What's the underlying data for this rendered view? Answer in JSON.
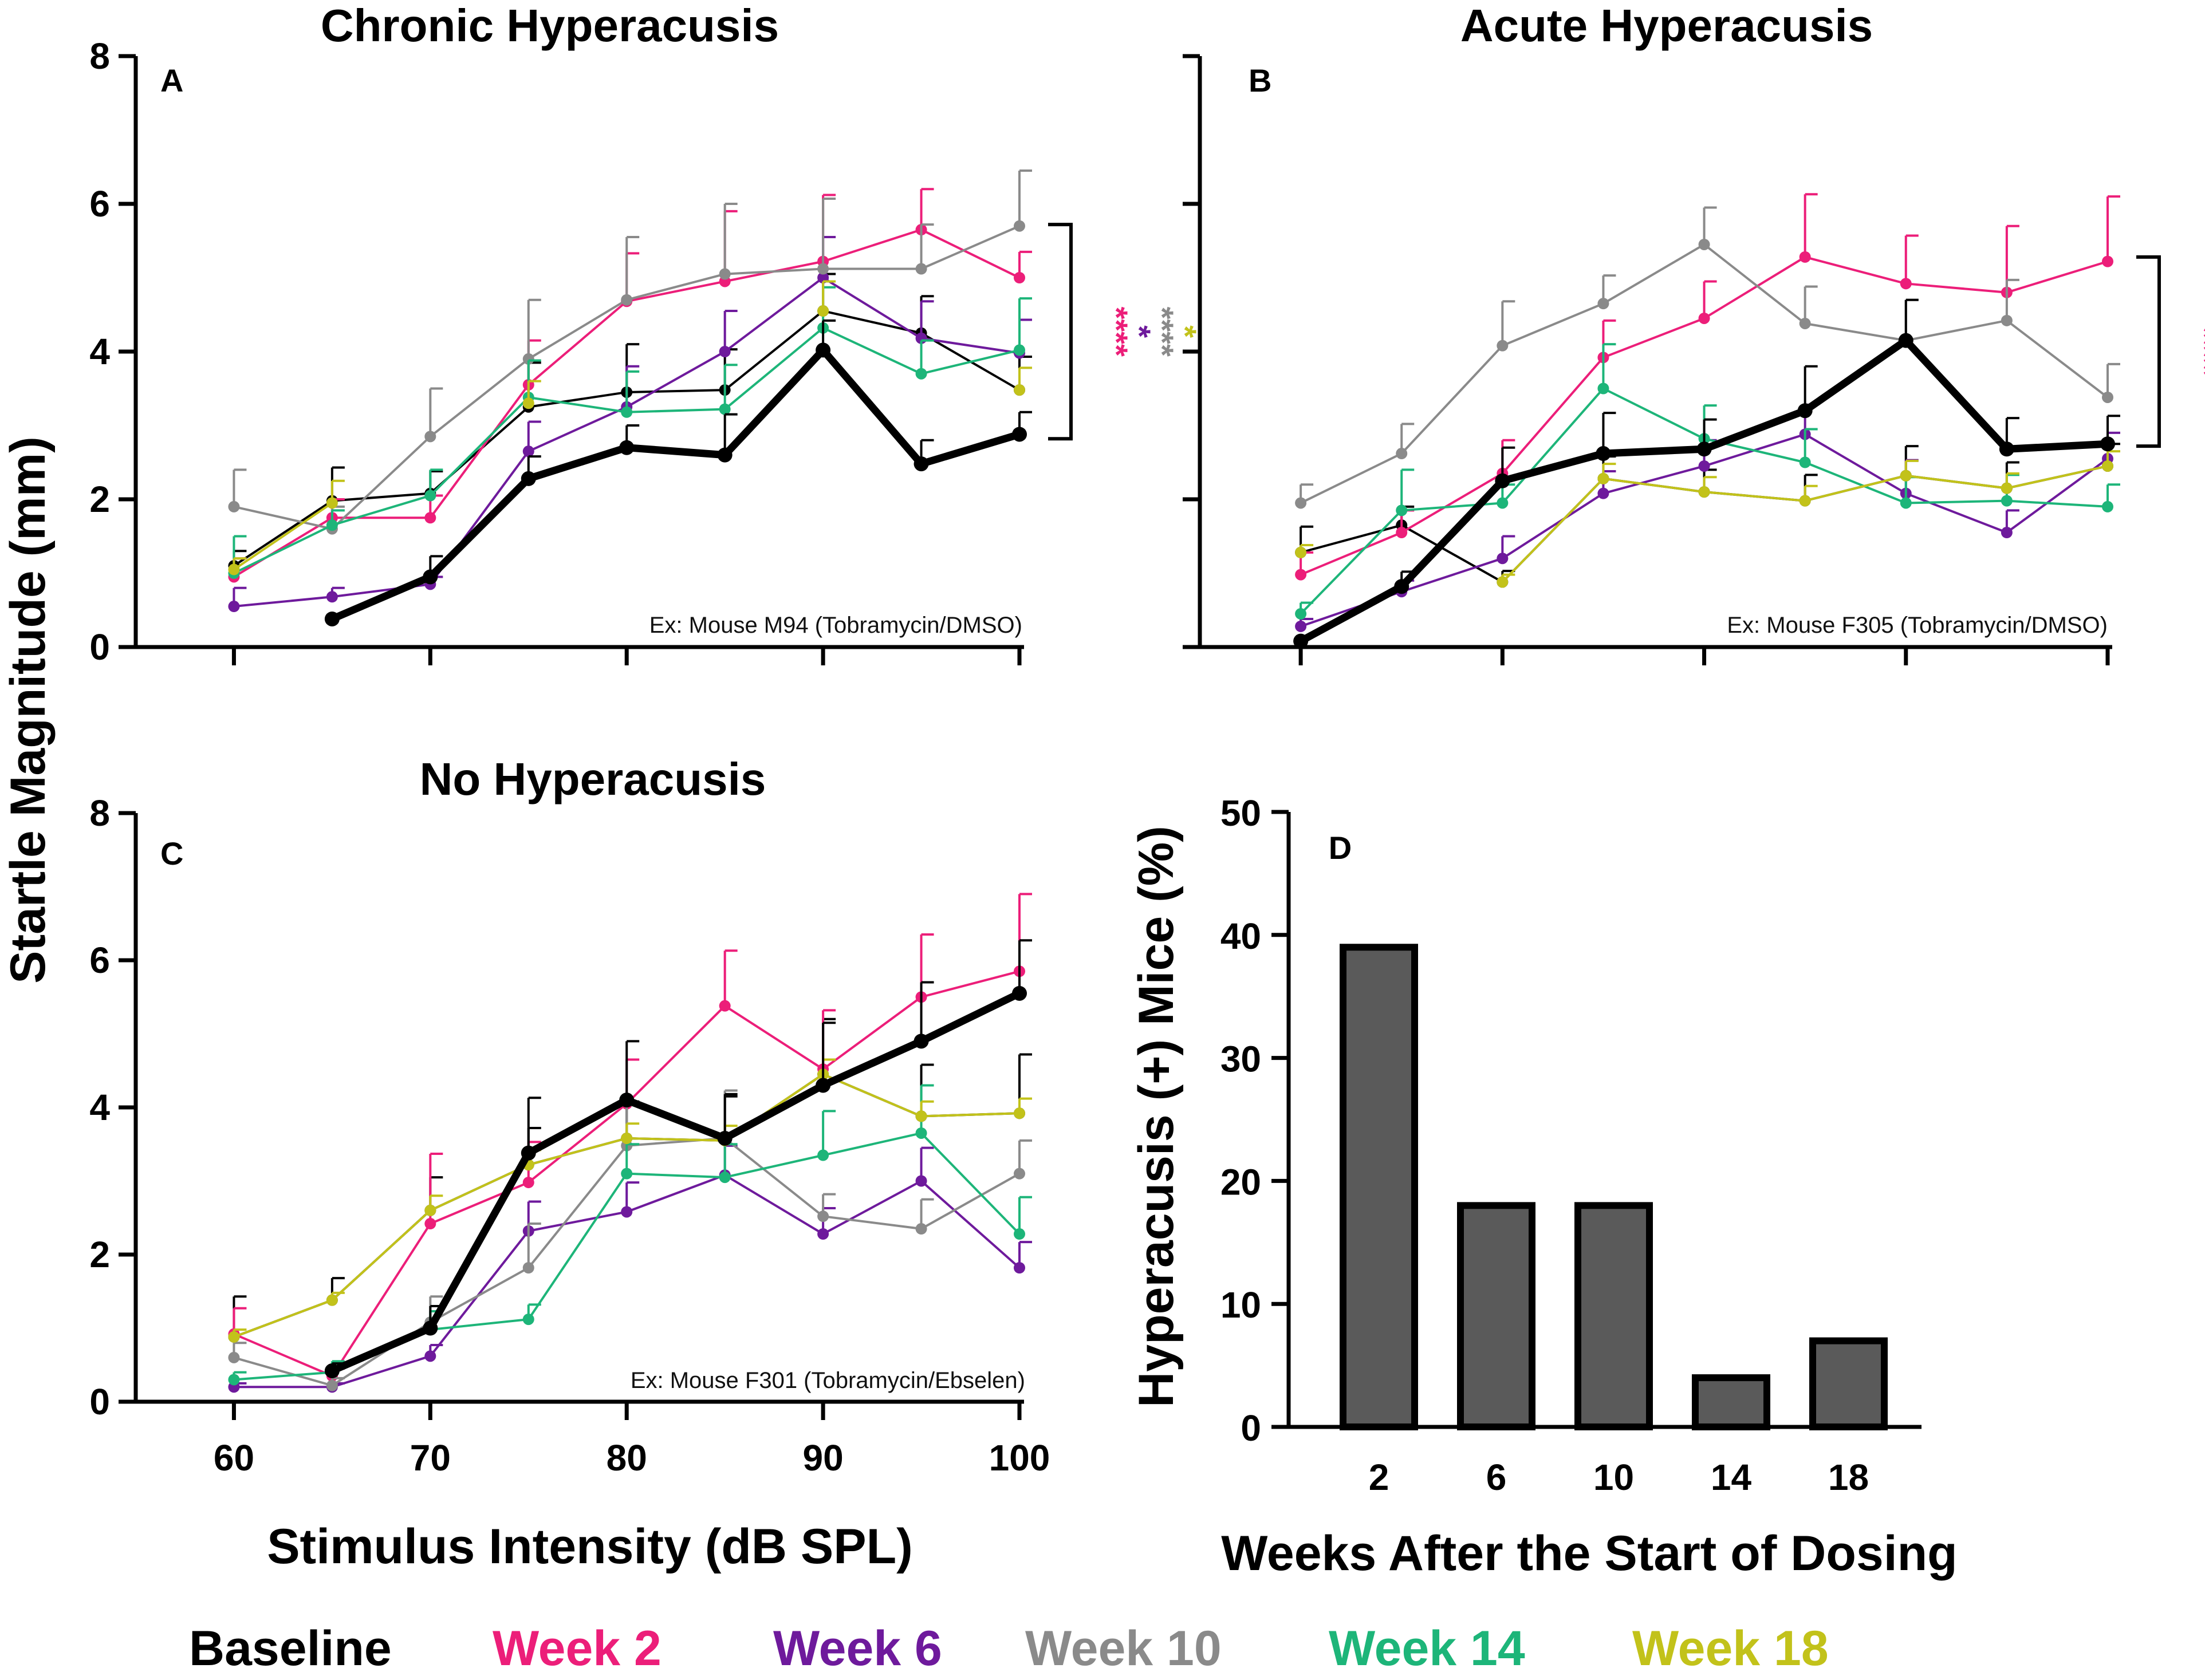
{
  "figure": {
    "ylabel": "Startle Magnitude (mm)",
    "xlabel": "Stimulus  Intensity (dB  SPL)"
  },
  "colors": {
    "baseline": "#000000",
    "week2": "#EC1E79",
    "week6": "#6E1A9C",
    "week10": "#8A8A8A",
    "week14": "#1DB579",
    "week18": "#C2C21A",
    "bar": "#5A5A5A"
  },
  "legend": [
    {
      "label": "Baseline",
      "color": "#000000"
    },
    {
      "label": "Week 2",
      "color": "#EC1E79"
    },
    {
      "label": "Week 6",
      "color": "#6E1A9C"
    },
    {
      "label": "Week 10",
      "color": "#8A8A8A"
    },
    {
      "label": "Week 14",
      "color": "#1DB579"
    },
    {
      "label": "Week 18",
      "color": "#C2C21A"
    }
  ],
  "chart_data": [
    {
      "id": "A",
      "type": "line",
      "title": "Chronic Hyperacusis",
      "panel_label": "A",
      "note": "Ex: Mouse M94  (Tobramycin/DMSO)",
      "xlim": [
        55,
        100
      ],
      "ylim": [
        0,
        8
      ],
      "xticks": [
        60,
        70,
        80,
        90,
        100
      ],
      "yticks": [
        0,
        2,
        4,
        6,
        8
      ],
      "show_x_tick_labels": false,
      "show_y_tick_labels": true,
      "x": [
        60,
        65,
        70,
        75,
        80,
        85,
        90,
        95,
        100
      ],
      "series": [
        {
          "name": "Baseline",
          "color": "#000000",
          "bold": true,
          "values": [
            null,
            0.38,
            0.95,
            2.28,
            2.7,
            2.6,
            4.02,
            2.48,
            2.88
          ],
          "errors": [
            null,
            0.05,
            0.28,
            0.3,
            0.3,
            0.55,
            0.4,
            0.32,
            0.3
          ]
        },
        {
          "name": "Baseline (individual)",
          "color": "#000000",
          "bold": false,
          "values": [
            1.1,
            1.98,
            2.08,
            3.25,
            3.45,
            3.48,
            4.55,
            4.25,
            3.48
          ],
          "errors": [
            0.2,
            0.45,
            0.3,
            0.6,
            0.65,
            0.55,
            0.5,
            0.5,
            0.45
          ]
        },
        {
          "name": "Week 2",
          "color": "#EC1E79",
          "bold": false,
          "values": [
            0.95,
            1.75,
            1.75,
            3.55,
            4.68,
            4.95,
            5.22,
            5.65,
            5.0
          ],
          "errors": [
            0.25,
            0.25,
            0.3,
            0.6,
            0.65,
            0.95,
            0.9,
            0.55,
            0.35
          ]
        },
        {
          "name": "Week 6",
          "color": "#6E1A9C",
          "bold": false,
          "values": [
            0.55,
            0.68,
            0.85,
            2.65,
            3.25,
            4.0,
            5.0,
            4.18,
            3.98
          ],
          "errors": [
            0.25,
            0.12,
            0.1,
            0.4,
            0.55,
            0.55,
            0.55,
            0.5,
            0.45
          ]
        },
        {
          "name": "Week 10",
          "color": "#8A8A8A",
          "bold": false,
          "values": [
            1.9,
            1.6,
            2.85,
            3.9,
            4.7,
            5.05,
            5.12,
            5.12,
            5.7
          ],
          "errors": [
            0.5,
            0.3,
            0.65,
            0.8,
            0.85,
            0.95,
            0.95,
            0.6,
            0.75
          ]
        },
        {
          "name": "Week 14",
          "color": "#1DB579",
          "bold": false,
          "values": [
            1.0,
            1.65,
            2.05,
            3.38,
            3.18,
            3.22,
            4.32,
            3.7,
            4.02
          ],
          "errors": [
            0.5,
            0.2,
            0.35,
            0.5,
            0.55,
            0.6,
            0.55,
            0.45,
            0.7
          ]
        },
        {
          "name": "Week 18",
          "color": "#C2C21A",
          "bold": false,
          "values": [
            1.05,
            1.95,
            null,
            3.3,
            null,
            null,
            4.55,
            null,
            3.48
          ],
          "errors": [
            0.15,
            0.3,
            null,
            0.3,
            null,
            null,
            0.4,
            null,
            0.3
          ]
        }
      ],
      "bracket": {
        "y_top": 5.72,
        "y_bottom": 2.82
      },
      "significance": [
        {
          "stars": "****",
          "color": "#EC1E79"
        },
        {
          "stars": "*",
          "color": "#6E1A9C"
        },
        {
          "stars": "****",
          "color": "#8A8A8A"
        },
        {
          "stars": "*",
          "color": "#C2C21A"
        }
      ]
    },
    {
      "id": "B",
      "type": "line",
      "title": "Acute Hyperacusis",
      "panel_label": "B",
      "note": "Ex: Mouse F305  (Tobramycin/DMSO)",
      "xlim": [
        55,
        100
      ],
      "ylim": [
        0,
        8
      ],
      "xticks": [
        60,
        70,
        80,
        90,
        100
      ],
      "yticks": [
        0,
        2,
        4,
        6,
        8
      ],
      "show_x_tick_labels": false,
      "show_y_tick_labels": false,
      "x": [
        60,
        65,
        70,
        75,
        80,
        85,
        90,
        95,
        100
      ],
      "series": [
        {
          "name": "Baseline",
          "color": "#000000",
          "bold": true,
          "values": [
            0.08,
            0.82,
            2.25,
            2.62,
            2.68,
            3.2,
            4.15,
            2.68,
            2.75
          ],
          "errors": [
            0.05,
            0.2,
            0.45,
            0.55,
            0.4,
            0.6,
            0.55,
            0.42,
            0.38
          ]
        },
        {
          "name": "Baseline (individual)",
          "color": "#000000",
          "bold": false,
          "values": [
            1.28,
            1.65,
            0.88,
            2.28,
            2.1,
            1.98,
            2.32,
            2.15,
            2.45
          ],
          "errors": [
            0.35,
            0.25,
            0.15,
            0.3,
            0.3,
            0.35,
            0.4,
            0.35,
            0.3
          ]
        },
        {
          "name": "Week 2",
          "color": "#EC1E79",
          "bold": false,
          "values": [
            0.98,
            1.55,
            2.35,
            3.92,
            4.45,
            5.28,
            4.92,
            4.8,
            5.22
          ],
          "errors": [
            0.3,
            0.3,
            0.45,
            0.5,
            0.5,
            0.85,
            0.65,
            0.9,
            0.88
          ]
        },
        {
          "name": "Week 6",
          "color": "#6E1A9C",
          "bold": false,
          "values": [
            0.28,
            0.75,
            1.2,
            2.08,
            2.45,
            2.88,
            2.08,
            1.55,
            2.55
          ],
          "errors": [
            0.1,
            0.15,
            0.3,
            0.3,
            0.35,
            0.4,
            0.45,
            0.3,
            0.35
          ]
        },
        {
          "name": "Week 10",
          "color": "#8A8A8A",
          "bold": false,
          "values": [
            1.95,
            2.62,
            4.08,
            4.65,
            5.45,
            4.38,
            4.15,
            4.42,
            3.38
          ],
          "errors": [
            0.25,
            0.4,
            0.6,
            0.38,
            0.5,
            0.5,
            0.55,
            0.55,
            0.45
          ]
        },
        {
          "name": "Week 14",
          "color": "#1DB579",
          "bold": false,
          "values": [
            0.45,
            1.85,
            1.95,
            3.5,
            2.82,
            2.5,
            1.95,
            1.98,
            1.9
          ],
          "errors": [
            0.15,
            0.55,
            0.25,
            0.6,
            0.45,
            0.45,
            0.35,
            0.35,
            0.3
          ]
        },
        {
          "name": "Week 18",
          "color": "#C2C21A",
          "bold": false,
          "values": [
            1.28,
            null,
            0.88,
            2.28,
            2.1,
            1.98,
            2.32,
            2.15,
            2.45
          ],
          "errors": [
            0.1,
            null,
            0.1,
            0.2,
            0.2,
            0.2,
            0.2,
            0.2,
            0.2
          ]
        }
      ],
      "bracket": {
        "y_top": 5.28,
        "y_bottom": 2.72
      },
      "significance": [
        {
          "stars": "****",
          "color": "#EC1E79"
        },
        {
          "stars": "****",
          "color": "#8A8A8A"
        }
      ]
    },
    {
      "id": "C",
      "type": "line",
      "title": "No  Hyperacusis",
      "panel_label": "C",
      "note": "Ex: Mouse F301  (Tobramycin/Ebselen)",
      "xlim": [
        55,
        100
      ],
      "ylim": [
        0,
        8
      ],
      "xticks": [
        60,
        70,
        80,
        90,
        100
      ],
      "yticks": [
        0,
        2,
        4,
        6,
        8
      ],
      "show_x_tick_labels": true,
      "show_y_tick_labels": true,
      "x": [
        60,
        65,
        70,
        75,
        80,
        85,
        90,
        95,
        100
      ],
      "series": [
        {
          "name": "Baseline",
          "color": "#000000",
          "bold": true,
          "values": [
            null,
            0.42,
            1.0,
            3.38,
            4.1,
            3.58,
            4.3,
            4.9,
            5.55
          ],
          "errors": [
            null,
            0.1,
            0.3,
            0.75,
            0.8,
            0.6,
            0.85,
            0.8,
            0.72
          ]
        },
        {
          "name": "Baseline (individual)",
          "color": "#000000",
          "bold": false,
          "values": [
            0.88,
            1.38,
            2.6,
            3.22,
            3.58,
            3.55,
            4.45,
            3.88,
            3.92
          ],
          "errors": [
            0.55,
            0.3,
            0.45,
            0.5,
            0.5,
            0.6,
            0.75,
            0.7,
            0.8
          ]
        },
        {
          "name": "Week 2",
          "color": "#EC1E79",
          "bold": false,
          "values": [
            0.92,
            0.35,
            2.42,
            2.98,
            4.05,
            5.38,
            4.52,
            5.5,
            5.85
          ],
          "errors": [
            0.35,
            0.1,
            0.95,
            0.55,
            0.6,
            0.75,
            0.8,
            0.85,
            1.05
          ]
        },
        {
          "name": "Week 6",
          "color": "#6E1A9C",
          "bold": false,
          "values": [
            0.2,
            0.2,
            0.62,
            2.32,
            2.58,
            3.08,
            2.28,
            3.0,
            1.82
          ],
          "errors": [
            0.05,
            0.05,
            0.15,
            0.4,
            0.4,
            0.4,
            0.35,
            0.45,
            0.35
          ]
        },
        {
          "name": "Week 10",
          "color": "#8A8A8A",
          "bold": false,
          "values": [
            0.6,
            0.22,
            1.08,
            1.82,
            3.48,
            3.58,
            2.52,
            2.35,
            3.1
          ],
          "errors": [
            0.2,
            0.1,
            0.35,
            0.6,
            0.55,
            0.65,
            0.3,
            0.4,
            0.45
          ]
        },
        {
          "name": "Week 14",
          "color": "#1DB579",
          "bold": false,
          "values": [
            0.3,
            0.4,
            0.98,
            1.12,
            3.1,
            3.05,
            3.35,
            3.65,
            2.28
          ],
          "errors": [
            0.1,
            0.15,
            0.25,
            0.2,
            0.4,
            0.45,
            0.6,
            0.65,
            0.5
          ]
        },
        {
          "name": "Week 18",
          "color": "#C2C21A",
          "bold": false,
          "values": [
            0.88,
            1.38,
            2.6,
            3.22,
            3.58,
            3.55,
            4.45,
            3.88,
            3.92
          ],
          "errors": [
            0.1,
            0.1,
            0.2,
            0.2,
            0.2,
            0.2,
            0.2,
            0.2,
            0.2
          ]
        }
      ]
    },
    {
      "id": "D",
      "type": "bar",
      "panel_label": "D",
      "title": "",
      "ylabel": "Hyperacusis (+) Mice  (%)",
      "xlabel": "Weeks After the Start of Dosing",
      "categories": [
        "2",
        "6",
        "10",
        "14",
        "18"
      ],
      "category_colors": [
        "#EC1E79",
        "#6E1A9C",
        "#8A8A8A",
        "#1DB579",
        "#C2C21A"
      ],
      "values": [
        39,
        18,
        18,
        4,
        7
      ],
      "ylim": [
        0,
        50
      ],
      "yticks": [
        0,
        10,
        20,
        30,
        40,
        50
      ]
    }
  ]
}
